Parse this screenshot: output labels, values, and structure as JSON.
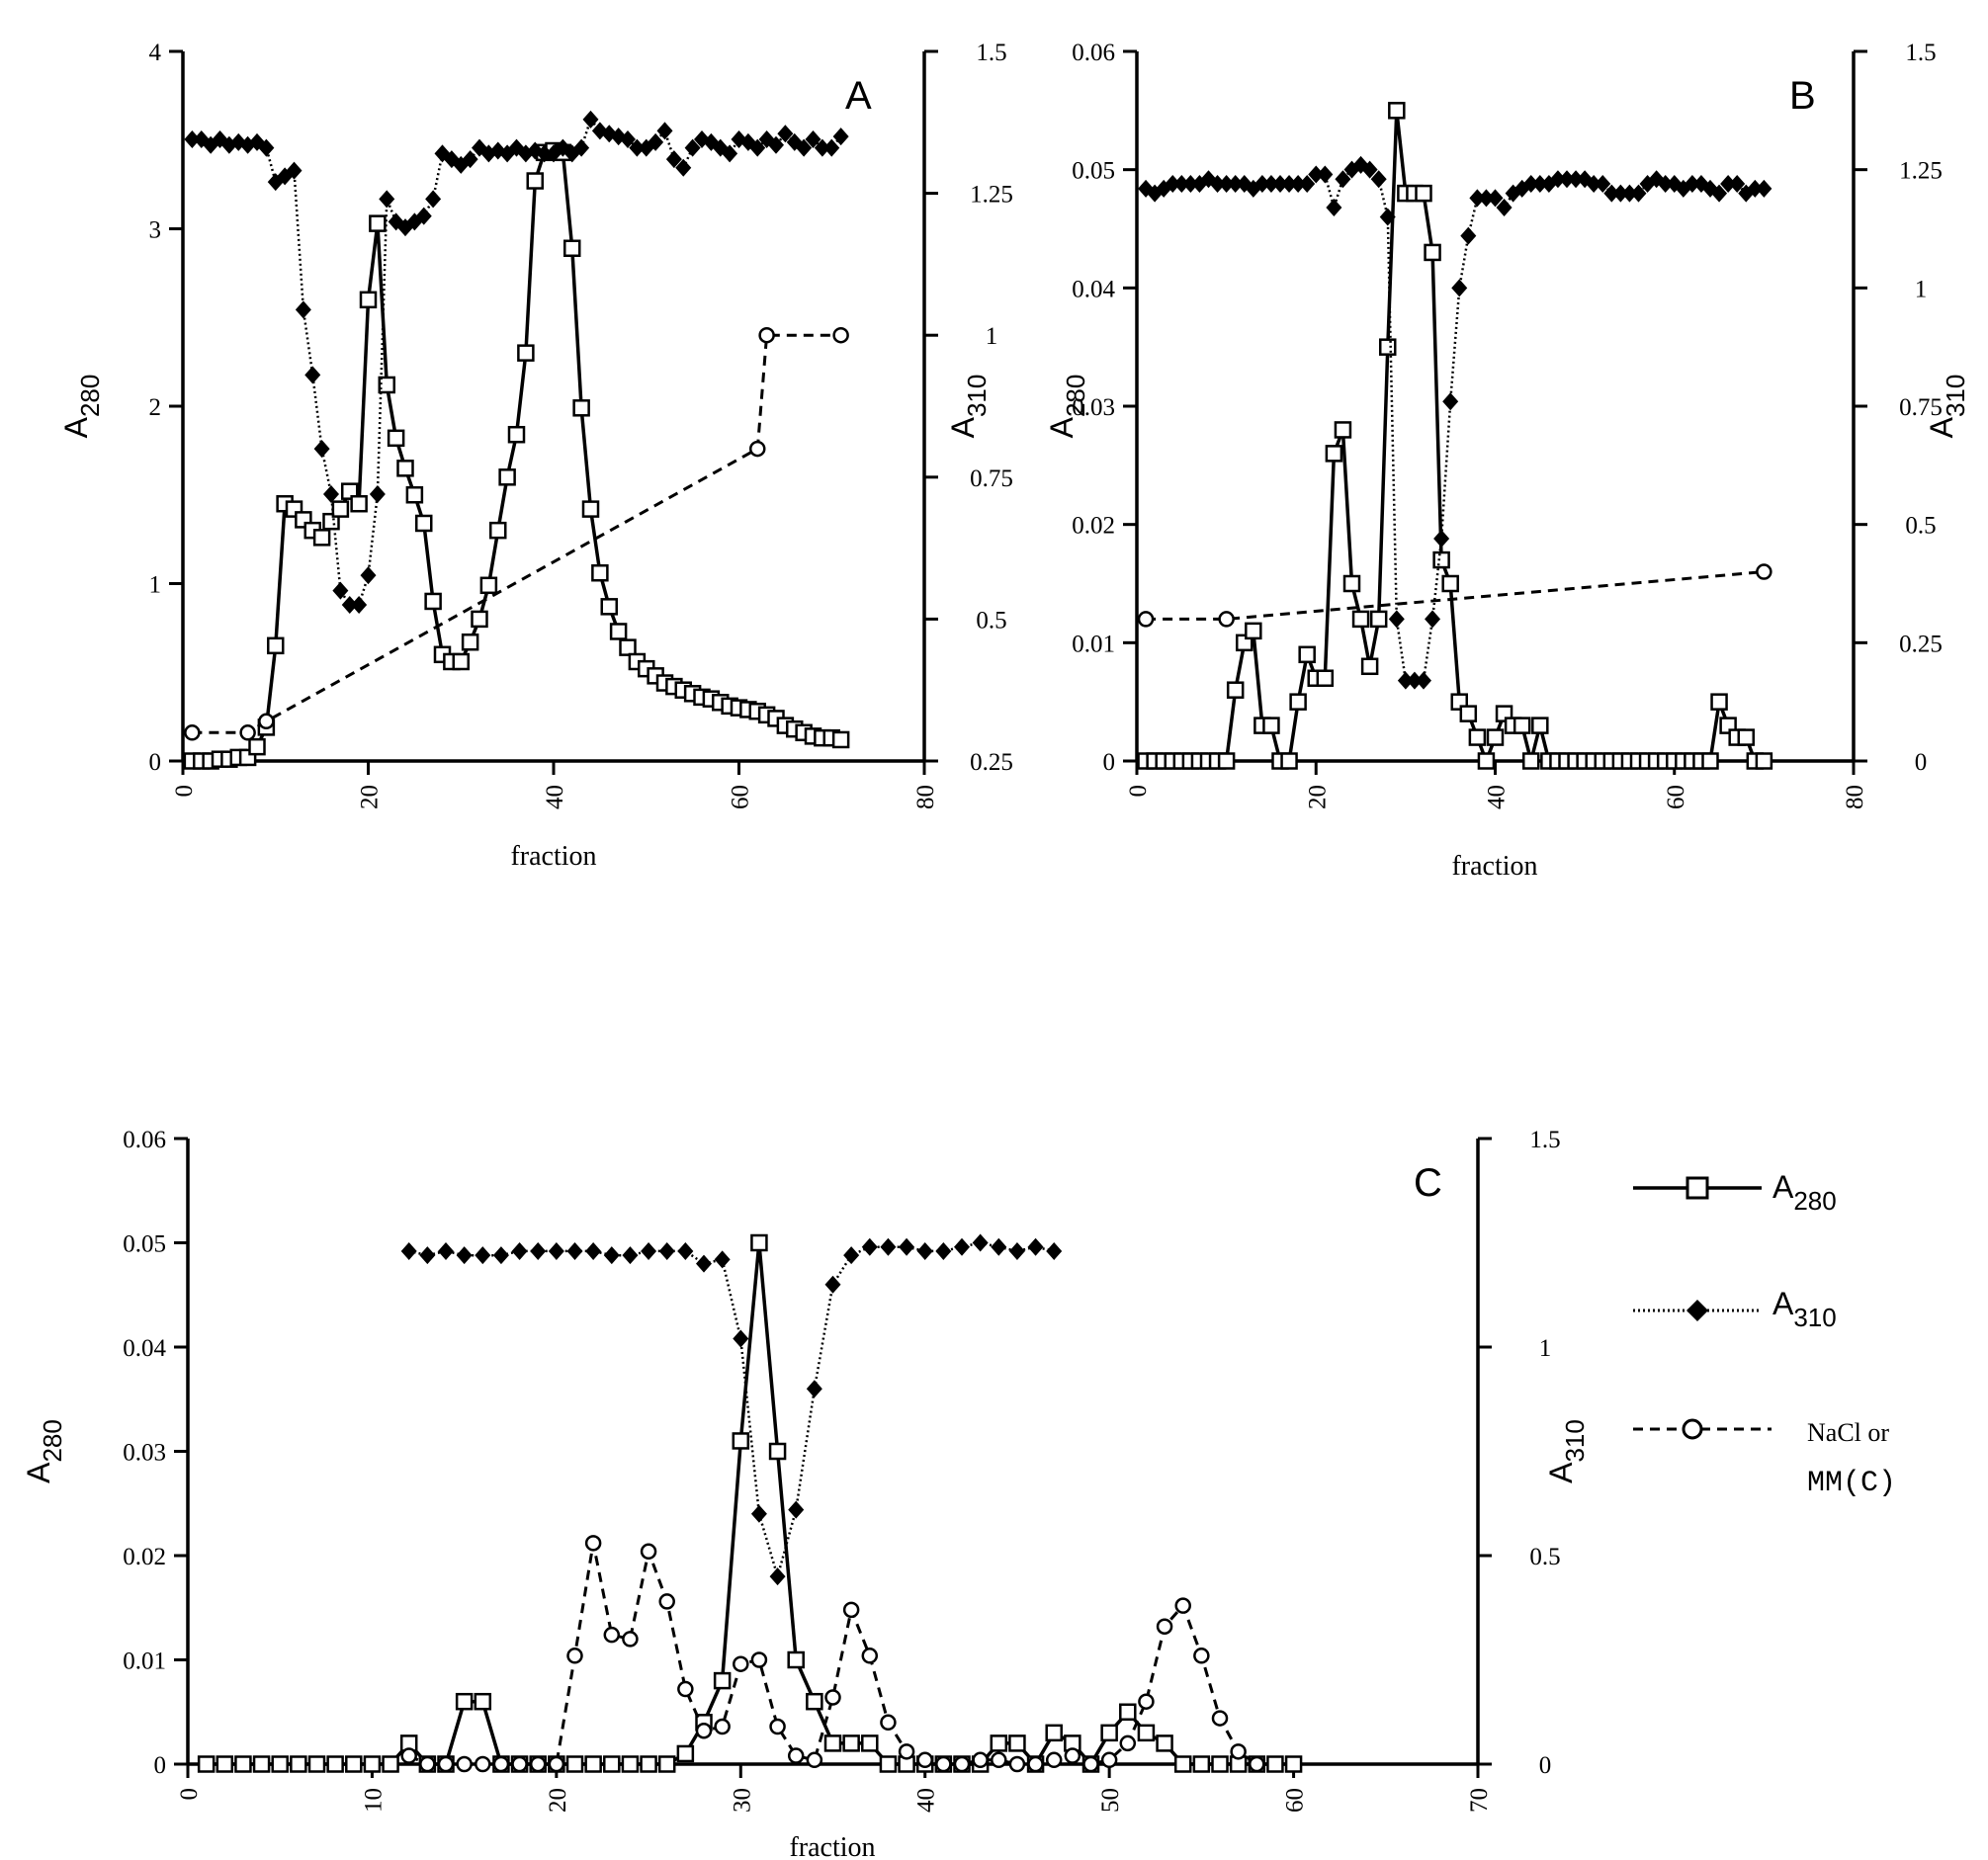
{
  "colors": {
    "ink": "#000000",
    "background": "#ffffff"
  },
  "chart_data": [
    {
      "panel": "A",
      "type": "line",
      "xlabel": "fraction",
      "ylabel": "A",
      "ylabel_sub": "280",
      "y2label": "A",
      "y2label_sub": "310",
      "xlim": [
        0,
        80
      ],
      "ylim": [
        0,
        4
      ],
      "y2lim": [
        0.25,
        1.5
      ],
      "xticks": [
        "0",
        "20",
        "40",
        "60",
        "80"
      ],
      "yticks": [
        "0",
        "1",
        "2",
        "3",
        "4"
      ],
      "y2ticks": [
        "0.25",
        "0.5",
        "0.75",
        "1",
        "1.25",
        "1.5"
      ],
      "series": [
        {
          "key": "A280",
          "marker": "square",
          "line": "solid",
          "axis": "left",
          "x": [
            1,
            2,
            3,
            4,
            5,
            6,
            7,
            8,
            9,
            10,
            11,
            12,
            13,
            14,
            15,
            16,
            17,
            18,
            19,
            20,
            21,
            22,
            23,
            24,
            25,
            26,
            27,
            28,
            29,
            30,
            31,
            32,
            33,
            34,
            35,
            36,
            37,
            38,
            39,
            40,
            41,
            42,
            43,
            44,
            45,
            46,
            47,
            48,
            49,
            50,
            51,
            52,
            53,
            54,
            55,
            56,
            57,
            58,
            59,
            60,
            61,
            62,
            63,
            64,
            65,
            66,
            67,
            68,
            69,
            70,
            71
          ],
          "y": [
            0,
            0,
            0,
            0.01,
            0.01,
            0.02,
            0.02,
            0.08,
            0.19,
            0.65,
            1.45,
            1.42,
            1.36,
            1.3,
            1.26,
            1.35,
            1.42,
            1.52,
            1.45,
            2.6,
            3.03,
            2.12,
            1.82,
            1.65,
            1.5,
            1.34,
            0.9,
            0.6,
            0.56,
            0.56,
            0.67,
            0.8,
            0.99,
            1.3,
            1.6,
            1.84,
            2.3,
            3.27,
            3.43,
            3.44,
            3.43,
            2.89,
            1.99,
            1.42,
            1.06,
            0.87,
            0.73,
            0.64,
            0.56,
            0.52,
            0.48,
            0.44,
            0.42,
            0.4,
            0.38,
            0.36,
            0.35,
            0.33,
            0.31,
            0.3,
            0.29,
            0.28,
            0.26,
            0.24,
            0.2,
            0.18,
            0.16,
            0.14,
            0.13,
            0.13,
            0.12
          ]
        },
        {
          "key": "A310",
          "marker": "diamond",
          "line": "dotted",
          "axis": "right",
          "x": [
            1,
            2,
            3,
            4,
            5,
            6,
            7,
            8,
            9,
            10,
            11,
            12,
            13,
            14,
            15,
            16,
            17,
            18,
            19,
            20,
            21,
            22,
            23,
            24,
            25,
            26,
            27,
            28,
            29,
            30,
            31,
            32,
            33,
            34,
            35,
            36,
            37,
            38,
            39,
            40,
            41,
            42,
            43,
            44,
            45,
            46,
            47,
            48,
            49,
            50,
            51,
            52,
            53,
            54,
            55,
            56,
            57,
            58,
            59,
            60,
            61,
            62,
            63,
            64,
            65,
            66,
            67,
            68,
            69,
            70,
            71
          ],
          "y": [
            1.345,
            1.345,
            1.335,
            1.345,
            1.335,
            1.34,
            1.335,
            1.34,
            1.33,
            1.27,
            1.28,
            1.29,
            1.045,
            0.93,
            0.8,
            0.72,
            0.55,
            0.525,
            0.525,
            0.577,
            0.72,
            1.24,
            1.2,
            1.19,
            1.2,
            1.21,
            1.24,
            1.32,
            1.31,
            1.3,
            1.31,
            1.33,
            1.32,
            1.325,
            1.32,
            1.33,
            1.32,
            1.325,
            1.32,
            1.32,
            1.33,
            1.32,
            1.33,
            1.38,
            1.36,
            1.355,
            1.35,
            1.345,
            1.33,
            1.33,
            1.34,
            1.36,
            1.31,
            1.295,
            1.33,
            1.345,
            1.34,
            1.33,
            1.32,
            1.345,
            1.34,
            1.33,
            1.345,
            1.335,
            1.355,
            1.34,
            1.33,
            1.345,
            1.33,
            1.33,
            1.35
          ]
        },
        {
          "key": "NaCl",
          "marker": "circle",
          "line": "dashed",
          "axis": "right",
          "x": [
            1,
            7,
            9,
            62,
            63,
            71
          ],
          "y": [
            0.3,
            0.3,
            0.32,
            0.8,
            1.0,
            1.0
          ]
        }
      ]
    },
    {
      "panel": "B",
      "type": "line",
      "xlabel": "fraction",
      "ylabel": "A",
      "ylabel_sub": "280",
      "y2label": "A",
      "y2label_sub": "310",
      "xlim": [
        0,
        80
      ],
      "ylim": [
        0,
        0.06
      ],
      "y2lim": [
        0,
        1.5
      ],
      "xticks": [
        "0",
        "20",
        "40",
        "60",
        "80"
      ],
      "yticks": [
        "0",
        "0.01",
        "0.02",
        "0.03",
        "0.04",
        "0.05",
        "0.06"
      ],
      "y2ticks": [
        "0",
        "0.25",
        "0.5",
        "0.75",
        "1",
        "1.25",
        "1.5"
      ],
      "series": [
        {
          "key": "A280",
          "marker": "square",
          "line": "solid",
          "axis": "left",
          "x": [
            1,
            2,
            3,
            4,
            5,
            6,
            7,
            8,
            9,
            10,
            11,
            12,
            13,
            14,
            15,
            16,
            17,
            18,
            19,
            20,
            21,
            22,
            23,
            24,
            25,
            26,
            27,
            28,
            29,
            30,
            31,
            32,
            33,
            34,
            35,
            36,
            37,
            38,
            39,
            40,
            41,
            42,
            43,
            44,
            45,
            46,
            47,
            48,
            49,
            50,
            51,
            52,
            53,
            54,
            55,
            56,
            57,
            58,
            59,
            60,
            61,
            62,
            63,
            64,
            65,
            66,
            67,
            68,
            69,
            70
          ],
          "y": [
            0,
            0,
            0,
            0,
            0,
            0,
            0,
            0,
            0,
            0,
            0.006,
            0.01,
            0.011,
            0.003,
            0.003,
            0,
            0,
            0.005,
            0.009,
            0.007,
            0.007,
            0.026,
            0.028,
            0.015,
            0.012,
            0.008,
            0.012,
            0.035,
            0.055,
            0.048,
            0.048,
            0.048,
            0.043,
            0.017,
            0.015,
            0.005,
            0.004,
            0.002,
            0,
            0.002,
            0.004,
            0.003,
            0.003,
            0,
            0.003,
            0,
            0,
            0,
            0,
            0,
            0,
            0,
            0,
            0,
            0,
            0,
            0,
            0,
            0,
            0,
            0,
            0,
            0,
            0,
            0.005,
            0.003,
            0.002,
            0.002,
            0,
            0
          ]
        },
        {
          "key": "A310",
          "marker": "diamond",
          "line": "dotted",
          "axis": "right",
          "x": [
            1,
            2,
            3,
            4,
            5,
            6,
            7,
            8,
            9,
            10,
            11,
            12,
            13,
            14,
            15,
            16,
            17,
            18,
            19,
            20,
            21,
            22,
            23,
            24,
            25,
            26,
            27,
            28,
            29,
            30,
            31,
            32,
            33,
            34,
            35,
            36,
            37,
            38,
            39,
            40,
            41,
            42,
            43,
            44,
            45,
            46,
            47,
            48,
            49,
            50,
            51,
            52,
            53,
            54,
            55,
            56,
            57,
            58,
            59,
            60,
            61,
            62,
            63,
            64,
            65,
            66,
            67,
            68,
            69,
            70
          ],
          "y": [
            1.21,
            1.2,
            1.21,
            1.22,
            1.22,
            1.22,
            1.22,
            1.23,
            1.22,
            1.22,
            1.22,
            1.22,
            1.21,
            1.22,
            1.22,
            1.22,
            1.22,
            1.22,
            1.22,
            1.24,
            1.24,
            1.17,
            1.23,
            1.25,
            1.26,
            1.25,
            1.23,
            1.15,
            0.3,
            0.17,
            0.17,
            0.17,
            0.3,
            0.47,
            0.76,
            1.0,
            1.11,
            1.19,
            1.19,
            1.19,
            1.17,
            1.2,
            1.21,
            1.22,
            1.22,
            1.22,
            1.23,
            1.23,
            1.23,
            1.23,
            1.22,
            1.22,
            1.2,
            1.2,
            1.2,
            1.2,
            1.22,
            1.23,
            1.22,
            1.22,
            1.21,
            1.22,
            1.22,
            1.21,
            1.2,
            1.22,
            1.22,
            1.2,
            1.21,
            1.21
          ]
        },
        {
          "key": "NaCl",
          "marker": "circle",
          "line": "dashed",
          "axis": "right",
          "x": [
            1,
            10,
            70
          ],
          "y": [
            0.3,
            0.3,
            0.4
          ]
        }
      ]
    },
    {
      "panel": "C",
      "type": "line",
      "xlabel": "fraction",
      "ylabel": "A",
      "ylabel_sub": "280",
      "y2label": "A",
      "y2label_sub": "310",
      "xlim": [
        0,
        70
      ],
      "ylim": [
        0,
        0.06
      ],
      "y2lim": [
        0,
        1.5
      ],
      "xticks": [
        "0",
        "10",
        "20",
        "30",
        "40",
        "50",
        "60",
        "70"
      ],
      "yticks": [
        "0",
        "0.01",
        "0.02",
        "0.03",
        "0.04",
        "0.05",
        "0.06"
      ],
      "y2ticks": [
        "0",
        "0.5",
        "1",
        "1.5"
      ],
      "series": [
        {
          "key": "A280",
          "marker": "square",
          "line": "solid",
          "axis": "left",
          "x": [
            1,
            2,
            3,
            4,
            5,
            6,
            7,
            8,
            9,
            10,
            11,
            12,
            13,
            14,
            15,
            16,
            17,
            18,
            19,
            20,
            21,
            22,
            23,
            24,
            25,
            26,
            27,
            28,
            29,
            30,
            31,
            32,
            33,
            34,
            35,
            36,
            37,
            38,
            39,
            40,
            41,
            42,
            43,
            44,
            45,
            46,
            47,
            48,
            49,
            50,
            51,
            52,
            53,
            54,
            55,
            56,
            57,
            58,
            59,
            60
          ],
          "y": [
            0,
            0,
            0,
            0,
            0,
            0,
            0,
            0,
            0,
            0,
            0,
            0.002,
            0,
            0,
            0.006,
            0.006,
            0,
            0,
            0,
            0,
            0,
            0,
            0,
            0,
            0,
            0,
            0.001,
            0.004,
            0.008,
            0.031,
            0.05,
            0.03,
            0.01,
            0.006,
            0.002,
            0.002,
            0.002,
            0,
            0,
            0,
            0,
            0,
            0,
            0.002,
            0.002,
            0,
            0.003,
            0.002,
            0,
            0.003,
            0.005,
            0.003,
            0.002,
            0,
            0,
            0,
            0,
            0,
            0,
            0
          ]
        },
        {
          "key": "A310",
          "marker": "diamond",
          "line": "dotted",
          "axis": "right",
          "x": [
            12,
            13,
            14,
            15,
            16,
            17,
            18,
            19,
            20,
            21,
            22,
            23,
            24,
            25,
            26,
            27,
            28,
            29,
            30,
            31,
            32,
            33,
            34,
            35,
            36,
            37,
            38,
            39,
            40,
            41,
            42,
            43,
            44,
            45,
            46,
            47
          ],
          "y": [
            1.23,
            1.22,
            1.23,
            1.22,
            1.22,
            1.22,
            1.23,
            1.23,
            1.23,
            1.23,
            1.23,
            1.22,
            1.22,
            1.23,
            1.23,
            1.23,
            1.2,
            1.21,
            1.02,
            0.6,
            0.45,
            0.61,
            0.9,
            1.15,
            1.22,
            1.24,
            1.24,
            1.24,
            1.23,
            1.23,
            1.24,
            1.25,
            1.24,
            1.23,
            1.24,
            1.23
          ]
        },
        {
          "key": "NaCl",
          "marker": "circle",
          "line": "dashed",
          "axis": "right",
          "x": [
            12,
            13,
            14,
            15,
            16,
            17,
            18,
            19,
            20,
            21,
            22,
            23,
            24,
            25,
            26,
            27,
            28,
            29,
            30,
            31,
            32,
            33,
            34,
            35,
            36,
            37,
            38,
            39,
            40,
            41,
            42,
            43,
            44,
            45,
            46,
            47,
            48,
            49,
            50,
            51,
            52,
            53,
            54,
            55,
            56,
            57,
            58
          ],
          "y": [
            0.02,
            0,
            0,
            0,
            0,
            0,
            0,
            0,
            0,
            0.26,
            0.53,
            0.31,
            0.3,
            0.51,
            0.39,
            0.18,
            0.08,
            0.09,
            0.24,
            0.25,
            0.09,
            0.02,
            0.01,
            0.16,
            0.37,
            0.26,
            0.1,
            0.03,
            0.01,
            0,
            0,
            0.01,
            0.01,
            0,
            0,
            0.01,
            0.02,
            0,
            0.01,
            0.05,
            0.15,
            0.33,
            0.38,
            0.26,
            0.11,
            0.03,
            0
          ]
        }
      ]
    }
  ],
  "legend": {
    "items": [
      {
        "key": "A280",
        "label": "A",
        "sub": "280"
      },
      {
        "key": "A310",
        "label": "A",
        "sub": "310"
      },
      {
        "key": "NaCl",
        "label": "NaCl or",
        "label2": "MM(C)"
      }
    ]
  }
}
